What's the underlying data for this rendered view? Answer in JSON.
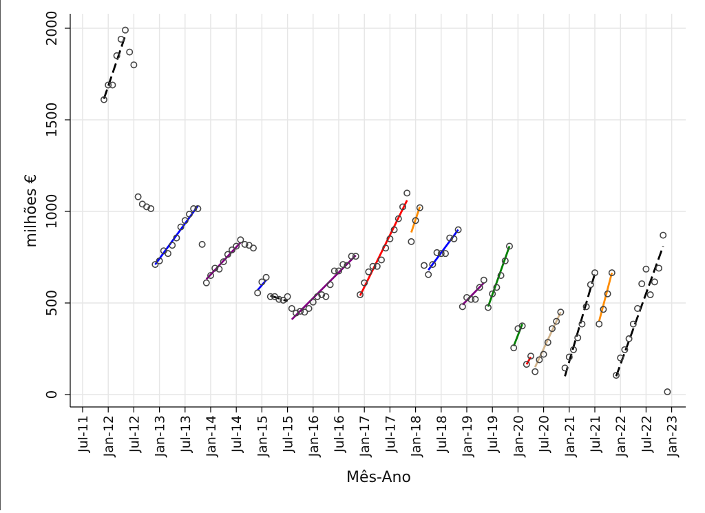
{
  "chart_data": {
    "type": "scatter",
    "xlabel": "Mês-Ano",
    "ylabel": "milhões €",
    "x_ticks": [
      "Jul-11",
      "Jan-12",
      "Jul-12",
      "Jan-13",
      "Jul-13",
      "Jan-14",
      "Jul-14",
      "Jan-15",
      "Jul-15",
      "Jan-16",
      "Jul-16",
      "Jan-17",
      "Jul-17",
      "Jan-18",
      "Jul-18",
      "Jan-19",
      "Jul-19",
      "Jan-20",
      "Jul-20",
      "Jan-21",
      "Jul-21",
      "Jan-22",
      "Jul-22",
      "Jan-23"
    ],
    "y_ticks": [
      "0",
      "500",
      "1000",
      "1500",
      "2000"
    ],
    "xlim": [
      "2011-07",
      "2023-01"
    ],
    "ylim": [
      0,
      2000
    ],
    "grid": true,
    "points": [
      {
        "x": "2011-12",
        "y": 1610
      },
      {
        "x": "2012-01",
        "y": 1690
      },
      {
        "x": "2012-02",
        "y": 1690
      },
      {
        "x": "2012-03",
        "y": 1850
      },
      {
        "x": "2012-04",
        "y": 1940
      },
      {
        "x": "2012-05",
        "y": 1990
      },
      {
        "x": "2012-06",
        "y": 1870
      },
      {
        "x": "2012-07",
        "y": 1800
      },
      {
        "x": "2012-08",
        "y": 1080
      },
      {
        "x": "2012-09",
        "y": 1040
      },
      {
        "x": "2012-10",
        "y": 1025
      },
      {
        "x": "2012-11",
        "y": 1015
      },
      {
        "x": "2012-12",
        "y": 710
      },
      {
        "x": "2013-01",
        "y": 730
      },
      {
        "x": "2013-02",
        "y": 785
      },
      {
        "x": "2013-03",
        "y": 770
      },
      {
        "x": "2013-04",
        "y": 815
      },
      {
        "x": "2013-05",
        "y": 855
      },
      {
        "x": "2013-06",
        "y": 915
      },
      {
        "x": "2013-07",
        "y": 950
      },
      {
        "x": "2013-08",
        "y": 985
      },
      {
        "x": "2013-09",
        "y": 1015
      },
      {
        "x": "2013-10",
        "y": 1015
      },
      {
        "x": "2013-11",
        "y": 820
      },
      {
        "x": "2013-12",
        "y": 610
      },
      {
        "x": "2014-01",
        "y": 650
      },
      {
        "x": "2014-02",
        "y": 690
      },
      {
        "x": "2014-03",
        "y": 685
      },
      {
        "x": "2014-04",
        "y": 725
      },
      {
        "x": "2014-05",
        "y": 765
      },
      {
        "x": "2014-06",
        "y": 790
      },
      {
        "x": "2014-07",
        "y": 810
      },
      {
        "x": "2014-08",
        "y": 845
      },
      {
        "x": "2014-09",
        "y": 820
      },
      {
        "x": "2014-10",
        "y": 815
      },
      {
        "x": "2014-11",
        "y": 800
      },
      {
        "x": "2014-12",
        "y": 555
      },
      {
        "x": "2015-01",
        "y": 615
      },
      {
        "x": "2015-02",
        "y": 640
      },
      {
        "x": "2015-03",
        "y": 535
      },
      {
        "x": "2015-04",
        "y": 535
      },
      {
        "x": "2015-05",
        "y": 520
      },
      {
        "x": "2015-06",
        "y": 515
      },
      {
        "x": "2015-07",
        "y": 535
      },
      {
        "x": "2015-08",
        "y": 470
      },
      {
        "x": "2015-09",
        "y": 445
      },
      {
        "x": "2015-10",
        "y": 455
      },
      {
        "x": "2015-11",
        "y": 450
      },
      {
        "x": "2015-12",
        "y": 470
      },
      {
        "x": "2016-01",
        "y": 505
      },
      {
        "x": "2016-02",
        "y": 535
      },
      {
        "x": "2016-03",
        "y": 545
      },
      {
        "x": "2016-04",
        "y": 535
      },
      {
        "x": "2016-05",
        "y": 600
      },
      {
        "x": "2016-06",
        "y": 675
      },
      {
        "x": "2016-07",
        "y": 675
      },
      {
        "x": "2016-08",
        "y": 710
      },
      {
        "x": "2016-09",
        "y": 705
      },
      {
        "x": "2016-10",
        "y": 755
      },
      {
        "x": "2016-11",
        "y": 755
      },
      {
        "x": "2016-12",
        "y": 545
      },
      {
        "x": "2017-01",
        "y": 610
      },
      {
        "x": "2017-02",
        "y": 670
      },
      {
        "x": "2017-03",
        "y": 700
      },
      {
        "x": "2017-04",
        "y": 700
      },
      {
        "x": "2017-05",
        "y": 735
      },
      {
        "x": "2017-06",
        "y": 800
      },
      {
        "x": "2017-07",
        "y": 850
      },
      {
        "x": "2017-08",
        "y": 900
      },
      {
        "x": "2017-09",
        "y": 960
      },
      {
        "x": "2017-10",
        "y": 1025
      },
      {
        "x": "2017-11",
        "y": 1100
      },
      {
        "x": "2017-12",
        "y": 835
      },
      {
        "x": "2018-01",
        "y": 950
      },
      {
        "x": "2018-02",
        "y": 1020
      },
      {
        "x": "2018-03",
        "y": 705
      },
      {
        "x": "2018-04",
        "y": 655
      },
      {
        "x": "2018-05",
        "y": 710
      },
      {
        "x": "2018-06",
        "y": 775
      },
      {
        "x": "2018-07",
        "y": 770
      },
      {
        "x": "2018-08",
        "y": 770
      },
      {
        "x": "2018-09",
        "y": 855
      },
      {
        "x": "2018-10",
        "y": 850
      },
      {
        "x": "2018-11",
        "y": 900
      },
      {
        "x": "2018-12",
        "y": 480
      },
      {
        "x": "2019-01",
        "y": 530
      },
      {
        "x": "2019-02",
        "y": 520
      },
      {
        "x": "2019-03",
        "y": 520
      },
      {
        "x": "2019-04",
        "y": 585
      },
      {
        "x": "2019-05",
        "y": 625
      },
      {
        "x": "2019-06",
        "y": 475
      },
      {
        "x": "2019-07",
        "y": 550
      },
      {
        "x": "2019-08",
        "y": 585
      },
      {
        "x": "2019-09",
        "y": 650
      },
      {
        "x": "2019-10",
        "y": 730
      },
      {
        "x": "2019-11",
        "y": 810
      },
      {
        "x": "2019-12",
        "y": 255
      },
      {
        "x": "2020-01",
        "y": 360
      },
      {
        "x": "2020-02",
        "y": 375
      },
      {
        "x": "2020-03",
        "y": 165
      },
      {
        "x": "2020-04",
        "y": 210
      },
      {
        "x": "2020-05",
        "y": 125
      },
      {
        "x": "2020-06",
        "y": 190
      },
      {
        "x": "2020-07",
        "y": 220
      },
      {
        "x": "2020-08",
        "y": 285
      },
      {
        "x": "2020-09",
        "y": 360
      },
      {
        "x": "2020-10",
        "y": 400
      },
      {
        "x": "2020-11",
        "y": 450
      },
      {
        "x": "2020-12",
        "y": 145
      },
      {
        "x": "2021-01",
        "y": 205
      },
      {
        "x": "2021-02",
        "y": 245
      },
      {
        "x": "2021-03",
        "y": 310
      },
      {
        "x": "2021-04",
        "y": 385
      },
      {
        "x": "2021-05",
        "y": 480
      },
      {
        "x": "2021-06",
        "y": 600
      },
      {
        "x": "2021-07",
        "y": 665
      },
      {
        "x": "2021-08",
        "y": 385
      },
      {
        "x": "2021-09",
        "y": 465
      },
      {
        "x": "2021-10",
        "y": 550
      },
      {
        "x": "2021-11",
        "y": 665
      },
      {
        "x": "2021-12",
        "y": 105
      },
      {
        "x": "2022-01",
        "y": 200
      },
      {
        "x": "2022-02",
        "y": 245
      },
      {
        "x": "2022-03",
        "y": 305
      },
      {
        "x": "2022-04",
        "y": 385
      },
      {
        "x": "2022-05",
        "y": 470
      },
      {
        "x": "2022-06",
        "y": 605
      },
      {
        "x": "2022-07",
        "y": 685
      },
      {
        "x": "2022-08",
        "y": 545
      },
      {
        "x": "2022-09",
        "y": 615
      },
      {
        "x": "2022-10",
        "y": 690
      },
      {
        "x": "2022-11",
        "y": 870
      },
      {
        "x": "2022-12",
        "y": 15
      }
    ],
    "trend_segments": [
      {
        "color": "#000000",
        "dashed": true,
        "x0": "2011-12",
        "y0": 1615,
        "x1": "2012-05",
        "y1": 1960
      },
      {
        "color": "#0000ff",
        "dashed": false,
        "x0": "2012-12",
        "y0": 710,
        "x1": "2013-10",
        "y1": 1030
      },
      {
        "color": "#800080",
        "dashed": false,
        "x0": "2013-12",
        "y0": 630,
        "x1": "2014-08",
        "y1": 830
      },
      {
        "color": "#0000ff",
        "dashed": false,
        "x0": "2014-12",
        "y0": 570,
        "x1": "2015-02",
        "y1": 625
      },
      {
        "color": "#000000",
        "dashed": true,
        "x0": "2015-03",
        "y0": 540,
        "x1": "2015-07",
        "y1": 510
      },
      {
        "color": "#800080",
        "dashed": false,
        "x0": "2015-08",
        "y0": 410,
        "x1": "2016-11",
        "y1": 760
      },
      {
        "color": "#ff0000",
        "dashed": false,
        "x0": "2016-12",
        "y0": 540,
        "x1": "2017-11",
        "y1": 1060
      },
      {
        "color": "#ff8c00",
        "dashed": false,
        "x0": "2017-12",
        "y0": 885,
        "x1": "2018-02",
        "y1": 1025
      },
      {
        "color": "#0000ff",
        "dashed": false,
        "x0": "2018-04",
        "y0": 680,
        "x1": "2018-11",
        "y1": 900
      },
      {
        "color": "#800080",
        "dashed": false,
        "x0": "2018-12",
        "y0": 490,
        "x1": "2019-05",
        "y1": 610
      },
      {
        "color": "#008000",
        "dashed": false,
        "x0": "2019-06",
        "y0": 480,
        "x1": "2019-11",
        "y1": 810
      },
      {
        "color": "#008000",
        "dashed": false,
        "x0": "2019-12",
        "y0": 265,
        "x1": "2020-02",
        "y1": 385
      },
      {
        "color": "#ff0000",
        "dashed": false,
        "x0": "2020-03",
        "y0": 165,
        "x1": "2020-04",
        "y1": 205
      },
      {
        "color": "#d2b48c",
        "dashed": false,
        "x0": "2020-05",
        "y0": 150,
        "x1": "2020-11",
        "y1": 450
      },
      {
        "color": "#000000",
        "dashed": true,
        "x0": "2020-12",
        "y0": 100,
        "x1": "2021-07",
        "y1": 660
      },
      {
        "color": "#ff8c00",
        "dashed": false,
        "x0": "2021-08",
        "y0": 400,
        "x1": "2021-11",
        "y1": 665
      },
      {
        "color": "#000000",
        "dashed": true,
        "x0": "2021-12",
        "y0": 100,
        "x1": "2022-11",
        "y1": 810
      }
    ]
  }
}
